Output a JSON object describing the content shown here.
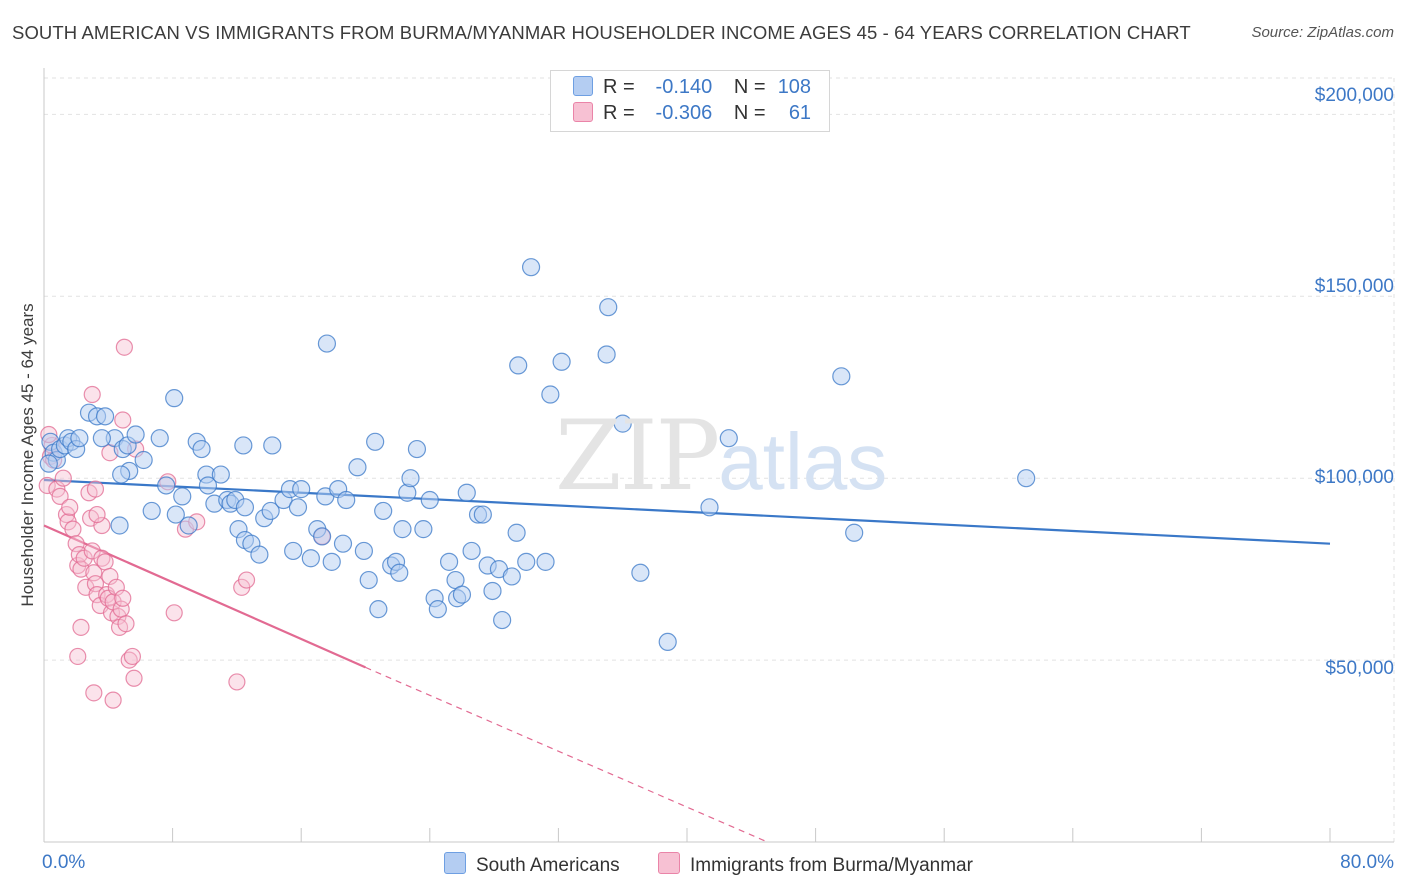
{
  "title": "SOUTH AMERICAN VS IMMIGRANTS FROM BURMA/MYANMAR HOUSEHOLDER INCOME AGES 45 - 64 YEARS CORRELATION CHART",
  "source": "Source: ZipAtlas.com",
  "watermark": {
    "zip": "ZIP",
    "atlas": "atlas"
  },
  "legend": {
    "r_label": "R =",
    "n_label": "N =",
    "rows": [
      {
        "r": "-0.140",
        "n": "108"
      },
      {
        "r": "-0.306",
        "n": "61"
      }
    ]
  },
  "bottom_legend": [
    "South Americans",
    "Immigrants from Burma/Myanmar"
  ],
  "colors": {
    "blue": "#3a78c8",
    "pink": "#e26a92",
    "blue_fill": "#b4cdf2",
    "pink_fill": "#f7c1d3"
  },
  "chart_data": {
    "type": "scatter",
    "title": "SOUTH AMERICAN VS IMMIGRANTS FROM BURMA/MYANMAR HOUSEHOLDER INCOME AGES 45 - 64 YEARS CORRELATION CHART",
    "xlabel": "",
    "ylabel": "Householder Income Ages 45 - 64 years",
    "xlim": [
      0,
      80
    ],
    "ylim": [
      0,
      210000
    ],
    "x_tick_labels": [
      "0.0%",
      "80.0%"
    ],
    "y_tick_labels": [
      "$50,000",
      "$100,000",
      "$150,000",
      "$200,000"
    ],
    "y_ticks": [
      50000,
      100000,
      150000,
      200000
    ],
    "grid": true,
    "legend_position": "top-center",
    "series": [
      {
        "name": "South Americans",
        "R": -0.14,
        "N": 108,
        "trend": {
          "x": [
            0,
            80
          ],
          "y": [
            99500,
            82000
          ],
          "dashed_after": null
        },
        "points": [
          [
            0.4,
            110000
          ],
          [
            0.6,
            107000
          ],
          [
            0.8,
            105000
          ],
          [
            1.0,
            108000
          ],
          [
            1.3,
            109000
          ],
          [
            1.5,
            111000
          ],
          [
            1.7,
            110000
          ],
          [
            2.0,
            108000
          ],
          [
            2.2,
            111000
          ],
          [
            2.8,
            118000
          ],
          [
            3.3,
            117000
          ],
          [
            3.8,
            117000
          ],
          [
            4.4,
            111000
          ],
          [
            3.6,
            111000
          ],
          [
            4.9,
            108000
          ],
          [
            5.2,
            109000
          ],
          [
            5.7,
            112000
          ],
          [
            6.2,
            105000
          ],
          [
            7.2,
            111000
          ],
          [
            8.1,
            122000
          ],
          [
            9.5,
            110000
          ],
          [
            9.8,
            108000
          ],
          [
            8.6,
            95000
          ],
          [
            6.7,
            91000
          ],
          [
            7.6,
            98000
          ],
          [
            8.2,
            90000
          ],
          [
            5.3,
            102000
          ],
          [
            4.8,
            101000
          ],
          [
            4.7,
            87000
          ],
          [
            9.0,
            87000
          ],
          [
            10.1,
            101000
          ],
          [
            10.2,
            98000
          ],
          [
            10.6,
            93000
          ],
          [
            11.0,
            101000
          ],
          [
            11.4,
            94000
          ],
          [
            11.6,
            93000
          ],
          [
            11.9,
            94000
          ],
          [
            12.1,
            86000
          ],
          [
            12.4,
            109000
          ],
          [
            12.5,
            83000
          ],
          [
            12.9,
            82000
          ],
          [
            13.4,
            79000
          ],
          [
            12.5,
            92000
          ],
          [
            13.7,
            89000
          ],
          [
            14.1,
            91000
          ],
          [
            14.2,
            109000
          ],
          [
            14.9,
            94000
          ],
          [
            15.3,
            97000
          ],
          [
            15.5,
            80000
          ],
          [
            15.8,
            92000
          ],
          [
            16.0,
            97000
          ],
          [
            16.6,
            78000
          ],
          [
            17.0,
            86000
          ],
          [
            17.3,
            84000
          ],
          [
            17.5,
            95000
          ],
          [
            17.6,
            137000
          ],
          [
            17.9,
            77000
          ],
          [
            18.3,
            97000
          ],
          [
            18.6,
            82000
          ],
          [
            18.8,
            94000
          ],
          [
            19.5,
            103000
          ],
          [
            19.9,
            80000
          ],
          [
            20.2,
            72000
          ],
          [
            20.6,
            110000
          ],
          [
            20.8,
            64000
          ],
          [
            21.1,
            91000
          ],
          [
            21.6,
            76000
          ],
          [
            21.9,
            77000
          ],
          [
            22.1,
            74000
          ],
          [
            22.3,
            86000
          ],
          [
            22.6,
            96000
          ],
          [
            22.8,
            100000
          ],
          [
            23.2,
            108000
          ],
          [
            23.6,
            86000
          ],
          [
            24.0,
            94000
          ],
          [
            24.3,
            67000
          ],
          [
            24.5,
            64000
          ],
          [
            25.2,
            77000
          ],
          [
            25.6,
            72000
          ],
          [
            25.7,
            67000
          ],
          [
            26.0,
            68000
          ],
          [
            26.3,
            96000
          ],
          [
            26.6,
            80000
          ],
          [
            27.0,
            90000
          ],
          [
            27.3,
            90000
          ],
          [
            27.6,
            76000
          ],
          [
            27.9,
            69000
          ],
          [
            28.3,
            75000
          ],
          [
            28.5,
            61000
          ],
          [
            29.1,
            73000
          ],
          [
            29.4,
            85000
          ],
          [
            29.5,
            131000
          ],
          [
            30.0,
            77000
          ],
          [
            30.3,
            158000
          ],
          [
            31.2,
            77000
          ],
          [
            31.5,
            123000
          ],
          [
            32.2,
            132000
          ],
          [
            35.0,
            134000
          ],
          [
            35.1,
            147000
          ],
          [
            36.0,
            115000
          ],
          [
            37.1,
            74000
          ],
          [
            38.8,
            55000
          ],
          [
            41.4,
            92000
          ],
          [
            42.6,
            111000
          ],
          [
            49.6,
            128000
          ],
          [
            50.4,
            85000
          ],
          [
            61.1,
            100000
          ],
          [
            0.3,
            104000
          ]
        ]
      },
      {
        "name": "Immigrants from Burma/Myanmar",
        "R": -0.306,
        "N": 61,
        "trend": {
          "x": [
            0,
            20
          ],
          "y": [
            87000,
            48000
          ],
          "dashed_to": [
            45,
            0
          ]
        },
        "points": [
          [
            0.2,
            98000
          ],
          [
            0.4,
            106000
          ],
          [
            0.5,
            109000
          ],
          [
            0.6,
            105000
          ],
          [
            0.8,
            97000
          ],
          [
            1.0,
            95000
          ],
          [
            1.2,
            100000
          ],
          [
            1.4,
            90000
          ],
          [
            1.5,
            88000
          ],
          [
            1.6,
            92000
          ],
          [
            1.8,
            86000
          ],
          [
            2.0,
            82000
          ],
          [
            2.1,
            76000
          ],
          [
            2.2,
            79000
          ],
          [
            2.3,
            75000
          ],
          [
            2.5,
            78000
          ],
          [
            2.6,
            70000
          ],
          [
            2.8,
            96000
          ],
          [
            2.9,
            89000
          ],
          [
            3.0,
            80000
          ],
          [
            3.1,
            74000
          ],
          [
            3.2,
            71000
          ],
          [
            3.3,
            68000
          ],
          [
            3.5,
            65000
          ],
          [
            3.6,
            78000
          ],
          [
            3.8,
            77000
          ],
          [
            3.9,
            68000
          ],
          [
            4.0,
            67000
          ],
          [
            4.1,
            73000
          ],
          [
            4.2,
            63000
          ],
          [
            4.3,
            66000
          ],
          [
            4.5,
            70000
          ],
          [
            4.6,
            62000
          ],
          [
            4.7,
            59000
          ],
          [
            4.8,
            64000
          ],
          [
            4.9,
            67000
          ],
          [
            5.1,
            60000
          ],
          [
            5.3,
            50000
          ],
          [
            5.5,
            51000
          ],
          [
            5.6,
            45000
          ],
          [
            2.3,
            59000
          ],
          [
            2.1,
            51000
          ],
          [
            3.1,
            41000
          ],
          [
            4.3,
            39000
          ],
          [
            3.2,
            97000
          ],
          [
            3.6,
            87000
          ],
          [
            3.3,
            90000
          ],
          [
            4.1,
            107000
          ],
          [
            4.9,
            116000
          ],
          [
            3.0,
            123000
          ],
          [
            5.0,
            136000
          ],
          [
            5.7,
            108000
          ],
          [
            7.7,
            99000
          ],
          [
            8.1,
            63000
          ],
          [
            8.8,
            86000
          ],
          [
            9.5,
            88000
          ],
          [
            12.0,
            44000
          ],
          [
            12.3,
            70000
          ],
          [
            12.6,
            72000
          ],
          [
            17.3,
            84000
          ],
          [
            0.3,
            112000
          ]
        ]
      }
    ]
  }
}
